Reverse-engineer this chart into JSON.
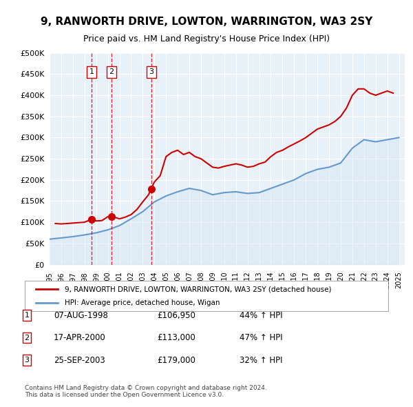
{
  "title": "9, RANWORTH DRIVE, LOWTON, WARRINGTON, WA3 2SY",
  "subtitle": "Price paid vs. HM Land Registry's House Price Index (HPI)",
  "ylabel": "",
  "ylim": [
    0,
    500000
  ],
  "yticks": [
    0,
    50000,
    100000,
    150000,
    200000,
    250000,
    300000,
    350000,
    400000,
    450000,
    500000
  ],
  "ytick_labels": [
    "£0",
    "£50K",
    "£100K",
    "£150K",
    "£200K",
    "£250K",
    "£300K",
    "£350K",
    "£400K",
    "£450K",
    "£500K"
  ],
  "xlim_start": 1995.0,
  "xlim_end": 2025.5,
  "purchases": [
    {
      "num": 1,
      "date_label": "07-AUG-1998",
      "date_x": 1998.6,
      "price": 106950,
      "pct": "44%"
    },
    {
      "num": 2,
      "date_label": "17-APR-2000",
      "date_x": 2000.3,
      "price": 113000,
      "pct": "47%"
    },
    {
      "num": 3,
      "date_label": "25-SEP-2003",
      "date_x": 2003.73,
      "price": 179000,
      "pct": "32%"
    }
  ],
  "legend_label_red": "9, RANWORTH DRIVE, LOWTON, WARRINGTON, WA3 2SY (detached house)",
  "legend_label_blue": "HPI: Average price, detached house, Wigan",
  "footer": "Contains HM Land Registry data © Crown copyright and database right 2024.\nThis data is licensed under the Open Government Licence v3.0.",
  "red_color": "#cc0000",
  "blue_color": "#6699cc",
  "blue_fill_color": "#cce0f0",
  "background_color": "#e8f0f8",
  "hpi_years": [
    1995,
    1996,
    1997,
    1998,
    1999,
    2000,
    2001,
    2002,
    2003,
    2004,
    2005,
    2006,
    2007,
    2008,
    2009,
    2010,
    2011,
    2012,
    2013,
    2014,
    2015,
    2016,
    2017,
    2018,
    2019,
    2020,
    2021,
    2022,
    2023,
    2024,
    2025
  ],
  "hpi_values": [
    60000,
    63000,
    66000,
    70000,
    75000,
    82000,
    92000,
    108000,
    125000,
    148000,
    162000,
    172000,
    180000,
    175000,
    165000,
    170000,
    172000,
    168000,
    170000,
    180000,
    190000,
    200000,
    215000,
    225000,
    230000,
    240000,
    275000,
    295000,
    290000,
    295000,
    300000
  ],
  "red_years": [
    1995.5,
    1996,
    1996.5,
    1997,
    1997.5,
    1998,
    1998.6,
    1999,
    1999.5,
    2000,
    2000.3,
    2000.8,
    2001,
    2001.5,
    2002,
    2002.5,
    2003,
    2003.5,
    2003.73,
    2004,
    2004.5,
    2005,
    2005.5,
    2006,
    2006.5,
    2007,
    2007.5,
    2008,
    2008.5,
    2009,
    2009.5,
    2010,
    2010.5,
    2011,
    2011.5,
    2012,
    2012.5,
    2013,
    2013.5,
    2014,
    2014.5,
    2015,
    2015.5,
    2016,
    2016.5,
    2017,
    2017.5,
    2018,
    2018.5,
    2019,
    2019.5,
    2020,
    2020.5,
    2021,
    2021.5,
    2022,
    2022.5,
    2023,
    2023.5,
    2024,
    2024.5
  ],
  "red_values": [
    97000,
    96000,
    97000,
    98000,
    99000,
    100000,
    106950,
    103000,
    104000,
    113000,
    113000,
    110000,
    108000,
    112000,
    118000,
    130000,
    148000,
    165000,
    179000,
    195000,
    210000,
    255000,
    265000,
    270000,
    260000,
    265000,
    255000,
    250000,
    240000,
    230000,
    228000,
    232000,
    235000,
    238000,
    235000,
    230000,
    232000,
    238000,
    242000,
    255000,
    265000,
    270000,
    278000,
    285000,
    292000,
    300000,
    310000,
    320000,
    325000,
    330000,
    338000,
    350000,
    370000,
    400000,
    415000,
    415000,
    405000,
    400000,
    405000,
    410000,
    405000
  ]
}
